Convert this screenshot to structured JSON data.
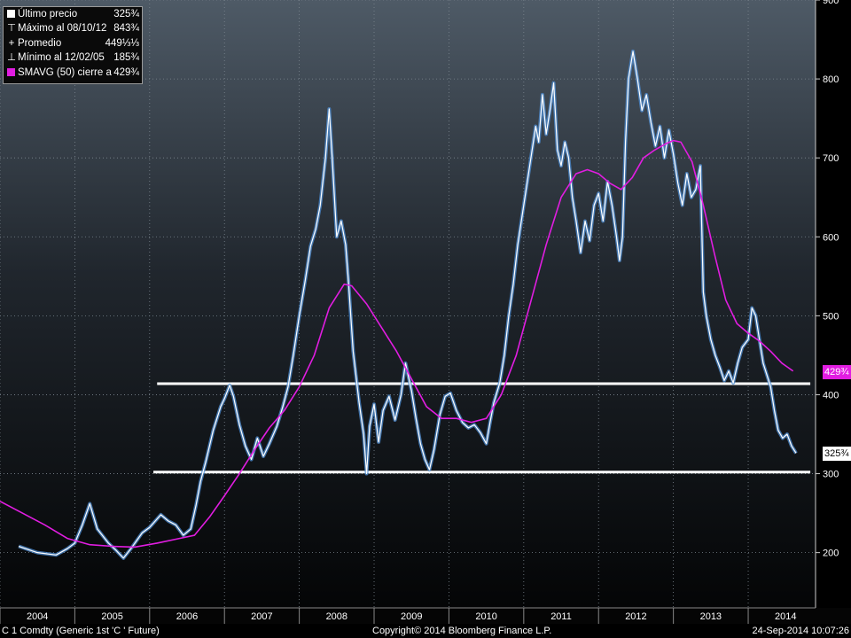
{
  "chart_data": {
    "type": "line",
    "ylim": [
      130,
      900
    ],
    "yticks": [
      200,
      300,
      400,
      500,
      600,
      700,
      800,
      900
    ],
    "ytick_labels": [
      "200",
      "300",
      "400",
      "500",
      "600",
      "700",
      "800",
      "900"
    ],
    "x_axis_labels": [
      "2004",
      "2005",
      "2006",
      "2007",
      "2008",
      "2009",
      "2010",
      "2011",
      "2012",
      "2013",
      "2014"
    ],
    "grid": true,
    "series": [
      {
        "name": "Último precio",
        "color": "#ffffff",
        "points": [
          [
            2004.25,
            208
          ],
          [
            2004.5,
            200
          ],
          [
            2004.75,
            197
          ],
          [
            2004.9,
            205
          ],
          [
            2005.0,
            212
          ],
          [
            2005.1,
            235
          ],
          [
            2005.2,
            262
          ],
          [
            2005.3,
            230
          ],
          [
            2005.45,
            212
          ],
          [
            2005.55,
            203
          ],
          [
            2005.65,
            193
          ],
          [
            2005.75,
            205
          ],
          [
            2005.9,
            225
          ],
          [
            2006.0,
            232
          ],
          [
            2006.15,
            248
          ],
          [
            2006.25,
            240
          ],
          [
            2006.35,
            235
          ],
          [
            2006.45,
            222
          ],
          [
            2006.55,
            230
          ],
          [
            2006.62,
            260
          ],
          [
            2006.68,
            290
          ],
          [
            2006.75,
            315
          ],
          [
            2006.85,
            355
          ],
          [
            2006.95,
            385
          ],
          [
            2007.0,
            395
          ],
          [
            2007.07,
            412
          ],
          [
            2007.12,
            398
          ],
          [
            2007.2,
            362
          ],
          [
            2007.28,
            335
          ],
          [
            2007.36,
            318
          ],
          [
            2007.44,
            345
          ],
          [
            2007.52,
            322
          ],
          [
            2007.6,
            338
          ],
          [
            2007.7,
            360
          ],
          [
            2007.78,
            385
          ],
          [
            2007.85,
            410
          ],
          [
            2007.92,
            450
          ],
          [
            2008.0,
            500
          ],
          [
            2008.08,
            545
          ],
          [
            2008.15,
            588
          ],
          [
            2008.22,
            610
          ],
          [
            2008.28,
            640
          ],
          [
            2008.35,
            700
          ],
          [
            2008.4,
            762
          ],
          [
            2008.44,
            700
          ],
          [
            2008.5,
            600
          ],
          [
            2008.56,
            620
          ],
          [
            2008.62,
            590
          ],
          [
            2008.66,
            540
          ],
          [
            2008.72,
            455
          ],
          [
            2008.8,
            390
          ],
          [
            2008.86,
            350
          ],
          [
            2008.9,
            300
          ],
          [
            2008.94,
            360
          ],
          [
            2009.0,
            388
          ],
          [
            2009.06,
            340
          ],
          [
            2009.12,
            380
          ],
          [
            2009.2,
            398
          ],
          [
            2009.28,
            368
          ],
          [
            2009.36,
            400
          ],
          [
            2009.42,
            440
          ],
          [
            2009.5,
            405
          ],
          [
            2009.56,
            370
          ],
          [
            2009.62,
            338
          ],
          [
            2009.68,
            318
          ],
          [
            2009.74,
            305
          ],
          [
            2009.8,
            330
          ],
          [
            2009.88,
            375
          ],
          [
            2009.95,
            398
          ],
          [
            2010.02,
            402
          ],
          [
            2010.1,
            380
          ],
          [
            2010.18,
            365
          ],
          [
            2010.26,
            358
          ],
          [
            2010.34,
            362
          ],
          [
            2010.42,
            352
          ],
          [
            2010.5,
            338
          ],
          [
            2010.55,
            365
          ],
          [
            2010.6,
            390
          ],
          [
            2010.68,
            415
          ],
          [
            2010.74,
            450
          ],
          [
            2010.8,
            500
          ],
          [
            2010.86,
            540
          ],
          [
            2010.92,
            590
          ],
          [
            2011.0,
            640
          ],
          [
            2011.08,
            690
          ],
          [
            2011.16,
            740
          ],
          [
            2011.2,
            720
          ],
          [
            2011.25,
            780
          ],
          [
            2011.3,
            730
          ],
          [
            2011.35,
            760
          ],
          [
            2011.4,
            795
          ],
          [
            2011.45,
            710
          ],
          [
            2011.5,
            690
          ],
          [
            2011.55,
            720
          ],
          [
            2011.6,
            700
          ],
          [
            2011.65,
            650
          ],
          [
            2011.7,
            620
          ],
          [
            2011.76,
            580
          ],
          [
            2011.82,
            620
          ],
          [
            2011.88,
            595
          ],
          [
            2011.94,
            640
          ],
          [
            2012.0,
            655
          ],
          [
            2012.06,
            620
          ],
          [
            2012.12,
            670
          ],
          [
            2012.18,
            640
          ],
          [
            2012.24,
            600
          ],
          [
            2012.28,
            570
          ],
          [
            2012.32,
            600
          ],
          [
            2012.36,
            720
          ],
          [
            2012.4,
            800
          ],
          [
            2012.46,
            835
          ],
          [
            2012.52,
            800
          ],
          [
            2012.58,
            760
          ],
          [
            2012.64,
            780
          ],
          [
            2012.7,
            745
          ],
          [
            2012.76,
            715
          ],
          [
            2012.82,
            740
          ],
          [
            2012.88,
            700
          ],
          [
            2012.94,
            735
          ],
          [
            2013.0,
            705
          ],
          [
            2013.06,
            668
          ],
          [
            2013.12,
            640
          ],
          [
            2013.18,
            680
          ],
          [
            2013.24,
            650
          ],
          [
            2013.3,
            660
          ],
          [
            2013.36,
            690
          ],
          [
            2013.4,
            530
          ],
          [
            2013.44,
            500
          ],
          [
            2013.5,
            470
          ],
          [
            2013.56,
            450
          ],
          [
            2013.62,
            435
          ],
          [
            2013.68,
            418
          ],
          [
            2013.74,
            430
          ],
          [
            2013.8,
            415
          ],
          [
            2013.86,
            440
          ],
          [
            2013.92,
            460
          ],
          [
            2014.0,
            470
          ],
          [
            2014.05,
            510
          ],
          [
            2014.1,
            500
          ],
          [
            2014.15,
            470
          ],
          [
            2014.2,
            440
          ],
          [
            2014.25,
            425
          ],
          [
            2014.3,
            410
          ],
          [
            2014.35,
            380
          ],
          [
            2014.4,
            355
          ],
          [
            2014.46,
            345
          ],
          [
            2014.52,
            350
          ],
          [
            2014.58,
            335
          ],
          [
            2014.64,
            326
          ]
        ]
      },
      {
        "name": "SMAVG (50)",
        "color": "#e11de1",
        "points": [
          [
            2004.0,
            265
          ],
          [
            2004.3,
            250
          ],
          [
            2004.6,
            235
          ],
          [
            2004.9,
            218
          ],
          [
            2005.2,
            210
          ],
          [
            2005.5,
            208
          ],
          [
            2005.8,
            207
          ],
          [
            2006.1,
            212
          ],
          [
            2006.4,
            218
          ],
          [
            2006.6,
            222
          ],
          [
            2006.8,
            245
          ],
          [
            2007.0,
            272
          ],
          [
            2007.2,
            300
          ],
          [
            2007.4,
            330
          ],
          [
            2007.6,
            358
          ],
          [
            2007.8,
            380
          ],
          [
            2008.0,
            410
          ],
          [
            2008.2,
            450
          ],
          [
            2008.4,
            510
          ],
          [
            2008.6,
            540
          ],
          [
            2008.7,
            538
          ],
          [
            2008.9,
            515
          ],
          [
            2009.1,
            485
          ],
          [
            2009.3,
            455
          ],
          [
            2009.5,
            420
          ],
          [
            2009.7,
            385
          ],
          [
            2009.9,
            370
          ],
          [
            2010.1,
            370
          ],
          [
            2010.3,
            365
          ],
          [
            2010.5,
            370
          ],
          [
            2010.7,
            400
          ],
          [
            2010.9,
            450
          ],
          [
            2011.1,
            520
          ],
          [
            2011.3,
            590
          ],
          [
            2011.5,
            650
          ],
          [
            2011.7,
            680
          ],
          [
            2011.85,
            685
          ],
          [
            2012.0,
            680
          ],
          [
            2012.15,
            668
          ],
          [
            2012.3,
            660
          ],
          [
            2012.45,
            675
          ],
          [
            2012.6,
            700
          ],
          [
            2012.75,
            710
          ],
          [
            2012.9,
            718
          ],
          [
            2013.0,
            722
          ],
          [
            2013.1,
            720
          ],
          [
            2013.25,
            695
          ],
          [
            2013.4,
            640
          ],
          [
            2013.55,
            578
          ],
          [
            2013.7,
            520
          ],
          [
            2013.85,
            490
          ],
          [
            2014.0,
            478
          ],
          [
            2014.15,
            468
          ],
          [
            2014.3,
            455
          ],
          [
            2014.45,
            440
          ],
          [
            2014.6,
            430
          ]
        ]
      }
    ],
    "hlines": [
      {
        "y": 414,
        "from": 2006.1,
        "to": 2014.83,
        "color": "#ffffff"
      },
      {
        "y": 302,
        "from": 2006.05,
        "to": 2014.83,
        "color": "#ffffff"
      }
    ],
    "axis_badges": [
      {
        "label": "429¾",
        "y": 429,
        "color": "#e11de1"
      },
      {
        "label": "325¾",
        "y": 325,
        "color": "#ffffff"
      }
    ]
  },
  "legend": [
    {
      "icon": "white-square",
      "label": "Último precio",
      "value": "325¾"
    },
    {
      "icon": "high-marker",
      "label": "Máximo al 08/10/12",
      "value": "843¾"
    },
    {
      "icon": "avg-marker",
      "label": "Promedio",
      "value": "449⅓⅓"
    },
    {
      "icon": "low-marker",
      "label": "Mínimo al 12/02/05",
      "value": "185¾"
    },
    {
      "icon": "magenta-square",
      "label": "SMAVG (50) cierre a",
      "value": "429¾"
    }
  ],
  "footer": {
    "left": "C 1 Comdty (Generic 1st 'C ' Future)",
    "center": "Copyright© 2014 Bloomberg Finance L.P.",
    "right": "24-Sep-2014 10:07:26"
  }
}
